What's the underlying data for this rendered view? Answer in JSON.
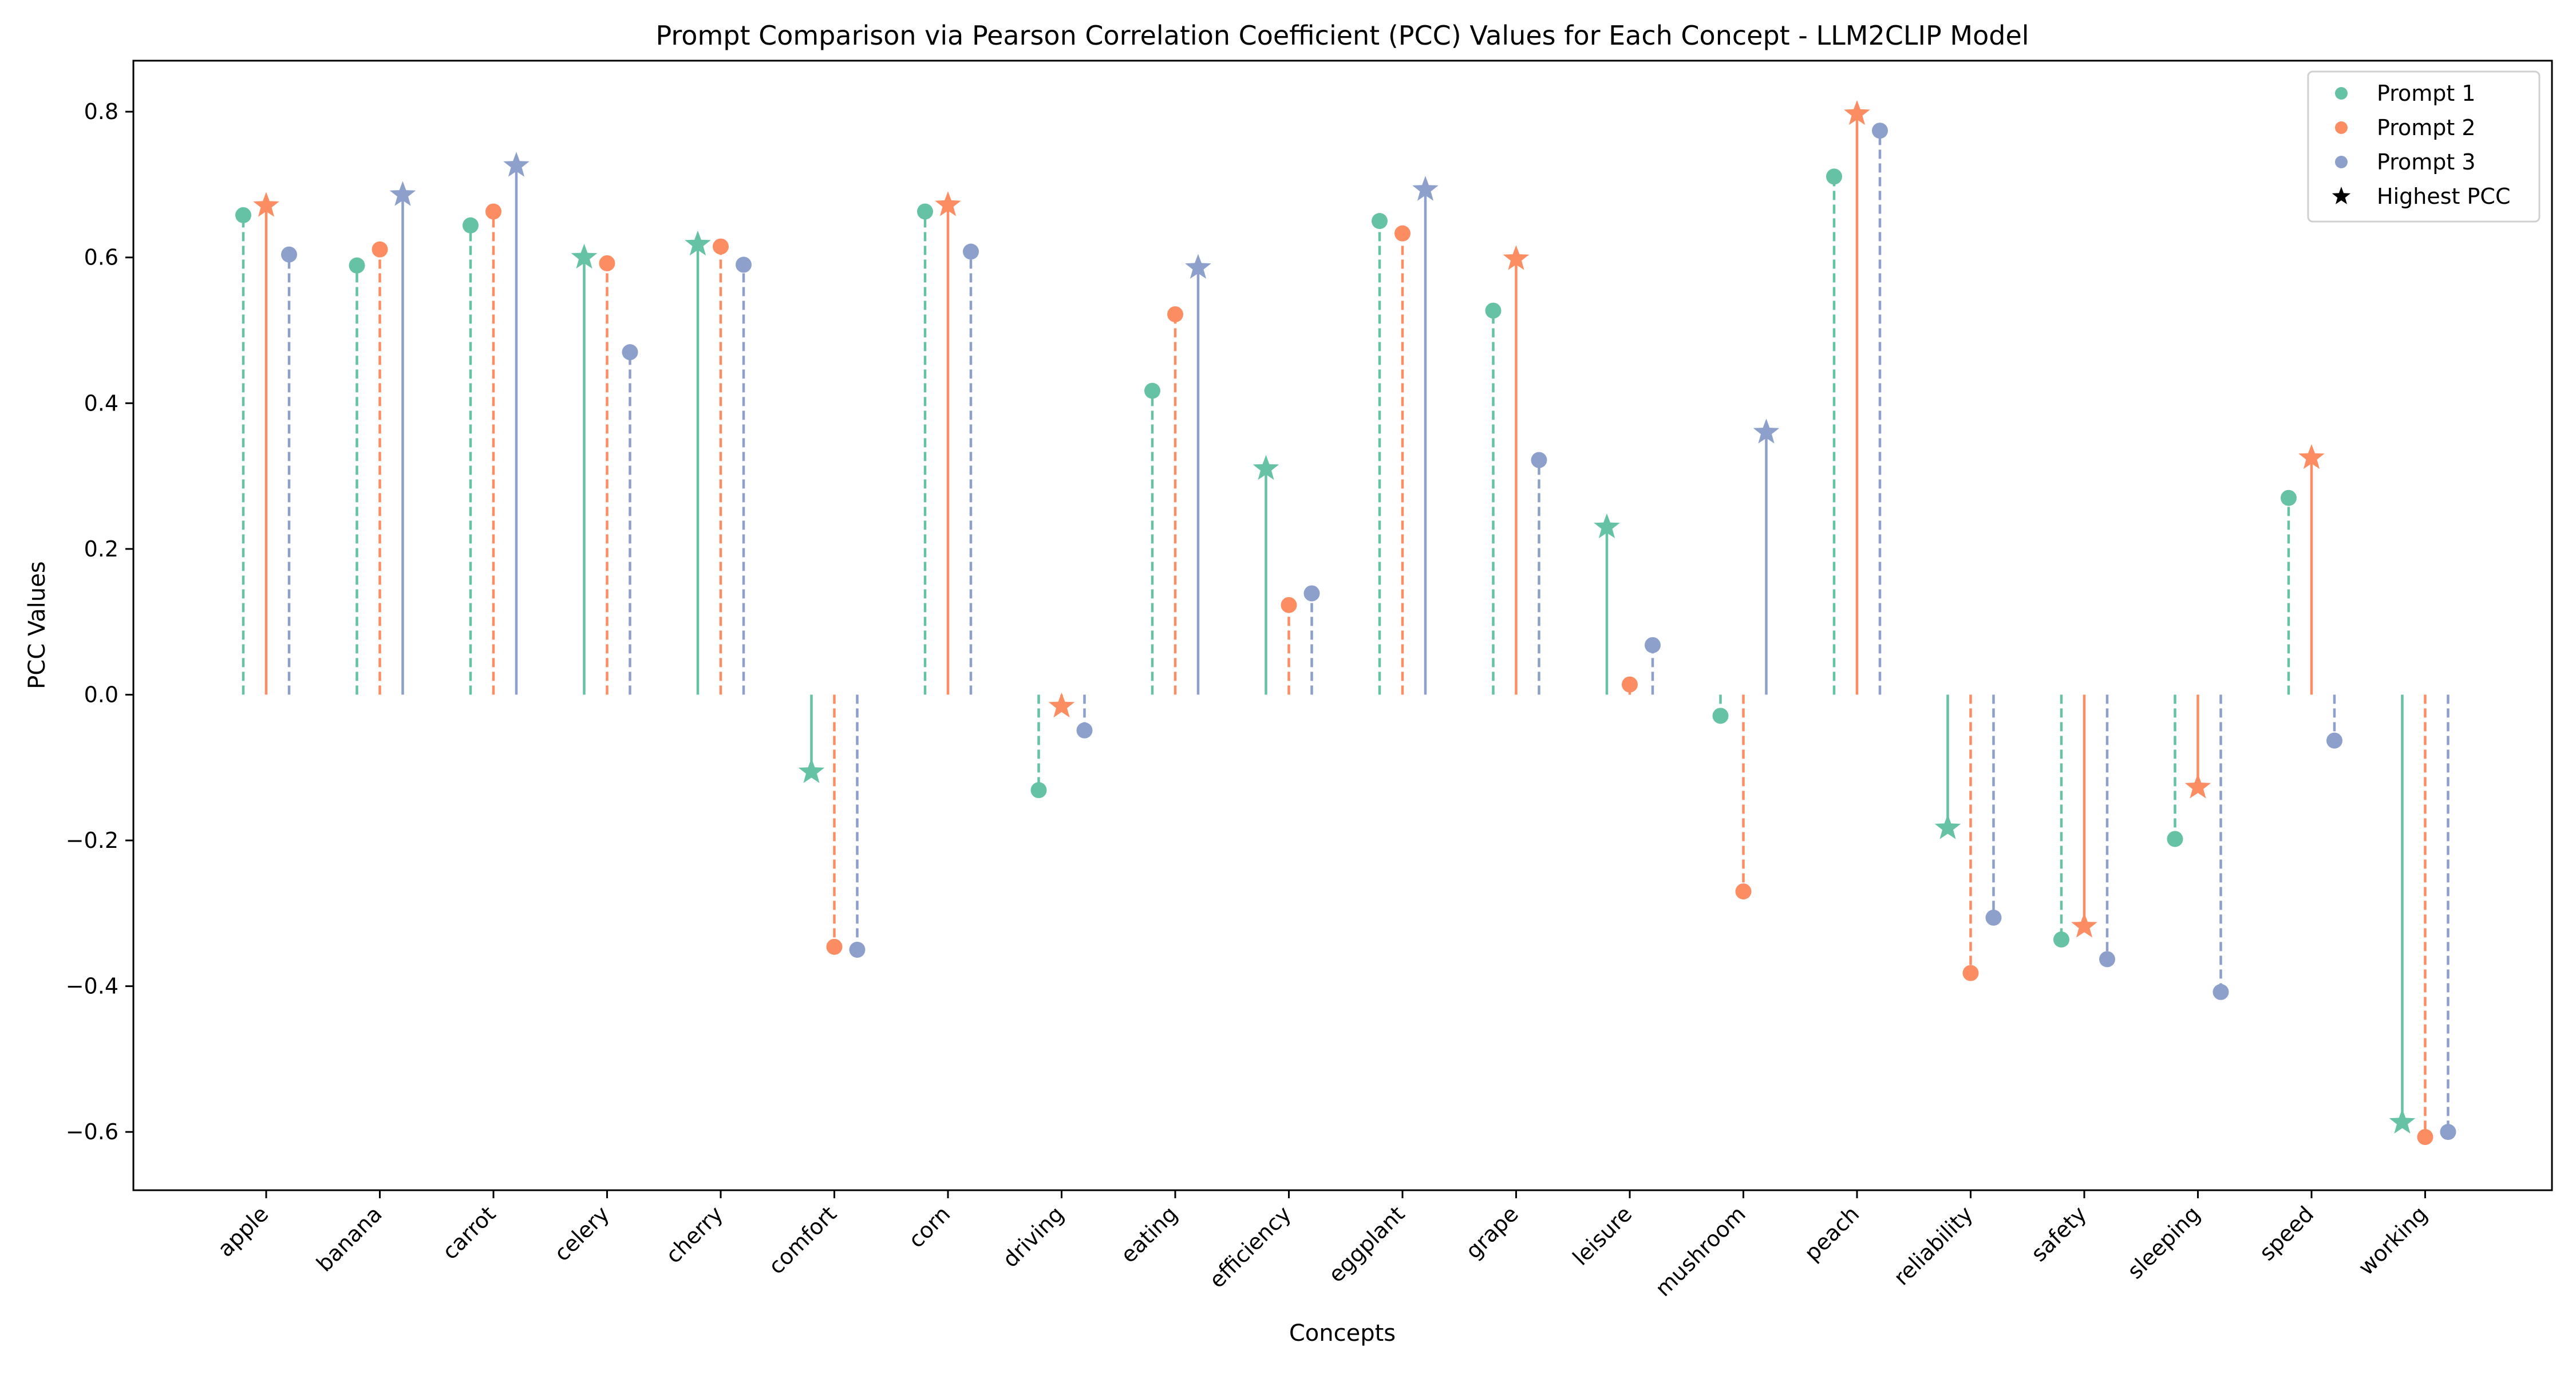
{
  "chart_data": {
    "type": "stem",
    "title": "Prompt Comparison via Pearson Correlation Coefficient (PCC) Values for Each Concept - LLM2CLIP Model",
    "xlabel": "Concepts",
    "ylabel": "PCC Values",
    "ylim": [
      -0.68,
      0.87
    ],
    "yticks": [
      -0.6,
      -0.4,
      -0.2,
      0.0,
      0.2,
      0.4,
      0.6,
      0.8
    ],
    "ytick_labels": [
      "−0.6",
      "−0.4",
      "−0.2",
      "0.0",
      "0.2",
      "0.4",
      "0.6",
      "0.8"
    ],
    "grid": false,
    "legend_position": "top-right",
    "categories": [
      "apple",
      "banana",
      "carrot",
      "celery",
      "cherry",
      "comfort",
      "corn",
      "driving",
      "eating",
      "efficiency",
      "eggplant",
      "grape",
      "leisure",
      "mushroom",
      "peach",
      "reliability",
      "safety",
      "sleeping",
      "speed",
      "working"
    ],
    "series": [
      {
        "name": "Prompt 1",
        "color": "#66c2a5",
        "values": [
          0.658,
          0.589,
          0.644,
          0.6,
          0.618,
          -0.106,
          0.663,
          -0.131,
          0.417,
          0.31,
          0.65,
          0.527,
          0.23,
          -0.029,
          0.711,
          -0.183,
          -0.336,
          -0.198,
          0.27,
          -0.587
        ]
      },
      {
        "name": "Prompt 2",
        "color": "#fc8d62",
        "values": [
          0.671,
          0.611,
          0.663,
          0.592,
          0.615,
          -0.346,
          0.672,
          -0.016,
          0.522,
          0.123,
          0.633,
          0.598,
          0.014,
          -0.27,
          0.797,
          -0.382,
          -0.318,
          -0.127,
          0.325,
          -0.607
        ]
      },
      {
        "name": "Prompt 3",
        "color": "#8da0cb",
        "values": [
          0.604,
          0.686,
          0.726,
          0.47,
          0.59,
          -0.35,
          0.608,
          -0.049,
          0.586,
          0.139,
          0.693,
          0.322,
          0.068,
          0.36,
          0.774,
          -0.306,
          -0.363,
          -0.408,
          -0.063,
          -0.6
        ]
      }
    ],
    "legend": [
      {
        "label": "Prompt 1",
        "marker": "circle",
        "color": "#66c2a5"
      },
      {
        "label": "Prompt 2",
        "marker": "circle",
        "color": "#fc8d62"
      },
      {
        "label": "Prompt 3",
        "marker": "circle",
        "color": "#8da0cb"
      },
      {
        "label": "Highest PCC",
        "marker": "star",
        "color": "#000000"
      }
    ]
  }
}
